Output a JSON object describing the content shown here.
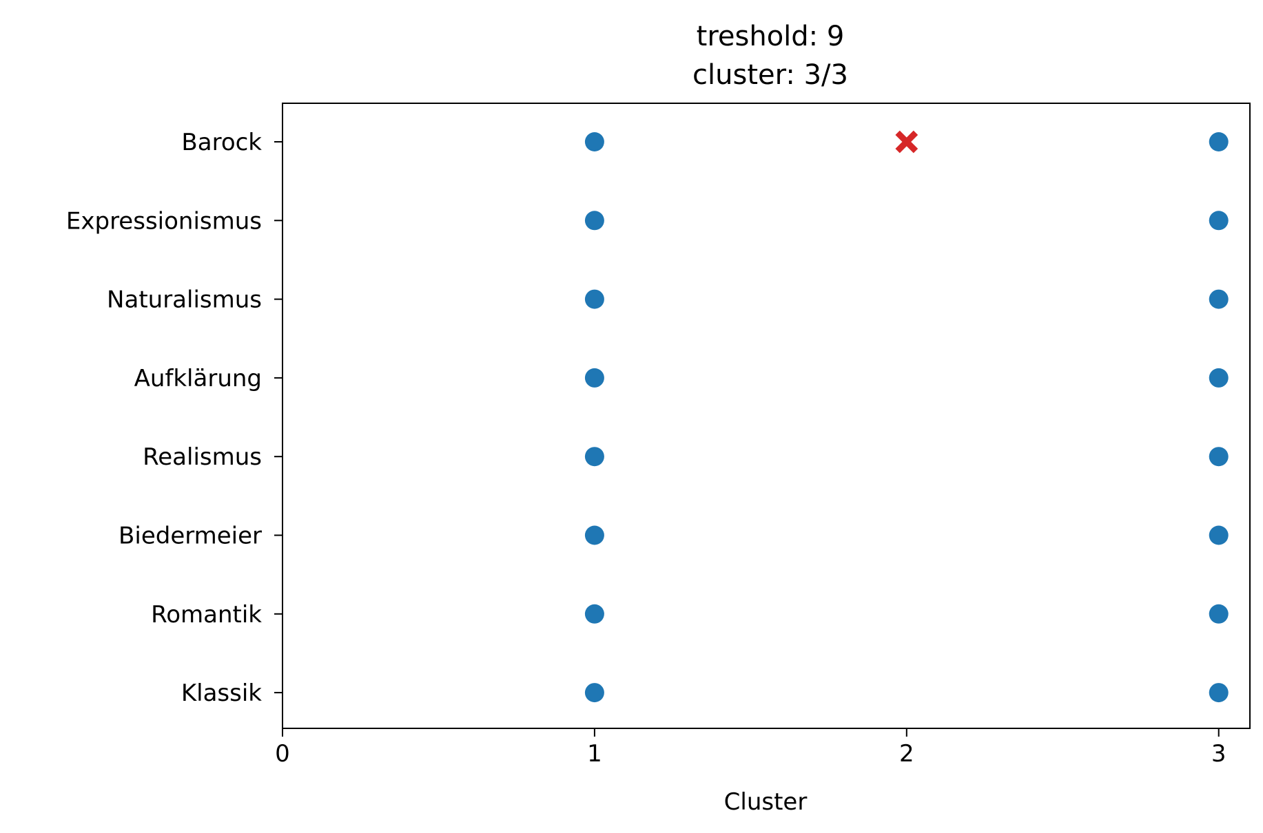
{
  "chart_data": {
    "type": "scatter",
    "title_lines": [
      "treshold: 9",
      "cluster: 3/3"
    ],
    "xlabel": "Cluster",
    "ylabel": "",
    "xlim": [
      0,
      3.1
    ],
    "xticks": [
      0,
      1,
      2,
      3
    ],
    "xtick_labels": [
      "0",
      "1",
      "2",
      "3"
    ],
    "categories": [
      "Barock",
      "Expressionismus",
      "Naturalismus",
      "Aufklärung",
      "Realismus",
      "Biedermeier",
      "Romantik",
      "Klassik"
    ],
    "grid": false,
    "legend": "none",
    "series": [
      {
        "marker": "circle",
        "color": "#1f77b4",
        "points": [
          {
            "x": 1,
            "y": "Barock"
          },
          {
            "x": 3,
            "y": "Barock"
          },
          {
            "x": 1,
            "y": "Expressionismus"
          },
          {
            "x": 3,
            "y": "Expressionismus"
          },
          {
            "x": 1,
            "y": "Naturalismus"
          },
          {
            "x": 3,
            "y": "Naturalismus"
          },
          {
            "x": 1,
            "y": "Aufklärung"
          },
          {
            "x": 3,
            "y": "Aufklärung"
          },
          {
            "x": 1,
            "y": "Realismus"
          },
          {
            "x": 3,
            "y": "Realismus"
          },
          {
            "x": 1,
            "y": "Biedermeier"
          },
          {
            "x": 3,
            "y": "Biedermeier"
          },
          {
            "x": 1,
            "y": "Romantik"
          },
          {
            "x": 3,
            "y": "Romantik"
          },
          {
            "x": 1,
            "y": "Klassik"
          },
          {
            "x": 3,
            "y": "Klassik"
          }
        ]
      },
      {
        "marker": "x",
        "color": "#d62728",
        "points": [
          {
            "x": 2,
            "y": "Barock"
          }
        ]
      }
    ]
  }
}
